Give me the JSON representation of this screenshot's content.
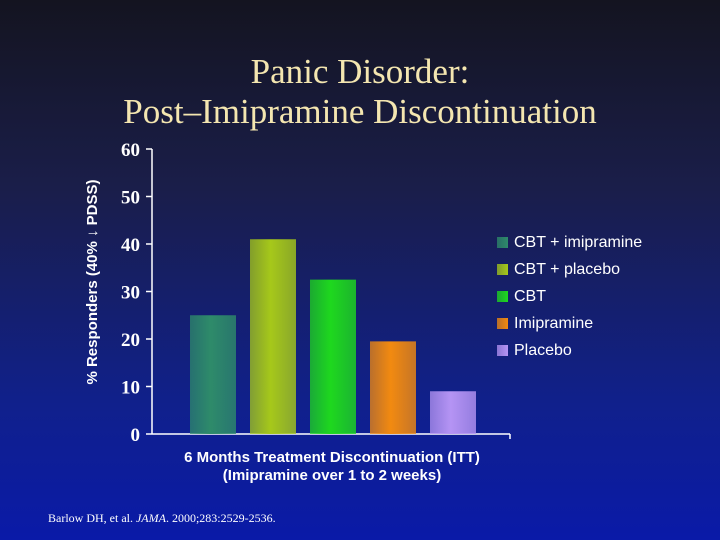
{
  "title_line1": "Panic Disorder:",
  "title_line2": "Post–Imipramine Discontinuation",
  "chart_data": {
    "type": "bar",
    "title": "Panic Disorder: Post–Imipramine Discontinuation",
    "ylabel": "% Responders (40% ↓ PDSS)",
    "xlabel_line1": "6 Months Treatment Discontinuation (ITT)",
    "xlabel_line2": "(Imipramine over 1 to 2 weeks)",
    "ylim": [
      0,
      60
    ],
    "yticks": [
      0,
      10,
      20,
      30,
      40,
      50,
      60
    ],
    "ytick_labels": [
      "0",
      "10",
      "20",
      "30",
      "40",
      "50",
      "60"
    ],
    "grid": false,
    "legend_position": "right",
    "series": [
      {
        "name": "CBT + imipramine",
        "value": 25,
        "color": "#2e8b6a"
      },
      {
        "name": "CBT + placebo",
        "value": 41,
        "color": "#a6c81a"
      },
      {
        "name": "CBT",
        "value": 32.5,
        "color": "#1ed81e"
      },
      {
        "name": "Imipramine",
        "value": 19.5,
        "color": "#f28a10"
      },
      {
        "name": "Placebo",
        "value": 9,
        "color": "#b594f4"
      }
    ]
  },
  "citation": {
    "prefix": "Barlow DH, et al. ",
    "journal": "JAMA",
    "suffix": ". 2000;283:2529-2536."
  }
}
